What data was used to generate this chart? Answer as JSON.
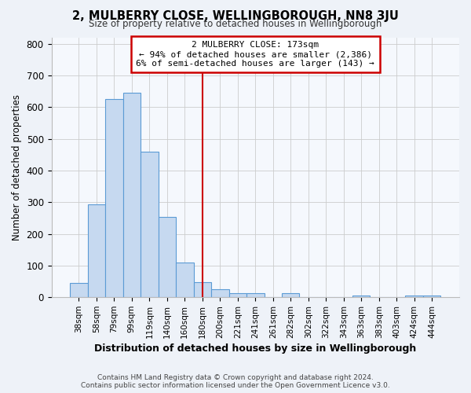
{
  "title": "2, MULBERRY CLOSE, WELLINGBOROUGH, NN8 3JU",
  "subtitle": "Size of property relative to detached houses in Wellingborough",
  "xlabel": "Distribution of detached houses by size in Wellingborough",
  "ylabel": "Number of detached properties",
  "bar_labels": [
    "38sqm",
    "58sqm",
    "79sqm",
    "99sqm",
    "119sqm",
    "140sqm",
    "160sqm",
    "180sqm",
    "200sqm",
    "221sqm",
    "241sqm",
    "261sqm",
    "282sqm",
    "302sqm",
    "322sqm",
    "343sqm",
    "363sqm",
    "383sqm",
    "403sqm",
    "424sqm",
    "444sqm"
  ],
  "bar_values": [
    45,
    293,
    626,
    644,
    460,
    253,
    110,
    47,
    26,
    14,
    14,
    0,
    13,
    0,
    0,
    0,
    5,
    0,
    0,
    5,
    5
  ],
  "bar_color": "#c6d9f0",
  "bar_edge_color": "#5b9bd5",
  "vline_x": 7,
  "vline_color": "#cc0000",
  "annotation_box_text": "2 MULBERRY CLOSE: 173sqm\n← 94% of detached houses are smaller (2,386)\n6% of semi-detached houses are larger (143) →",
  "box_edge_color": "#cc0000",
  "ylim": [
    0,
    820
  ],
  "yticks": [
    0,
    100,
    200,
    300,
    400,
    500,
    600,
    700,
    800
  ],
  "footer": "Contains HM Land Registry data © Crown copyright and database right 2024.\nContains public sector information licensed under the Open Government Licence v3.0.",
  "background_color": "#eef2f8",
  "plot_bg_color": "#f5f8fd"
}
